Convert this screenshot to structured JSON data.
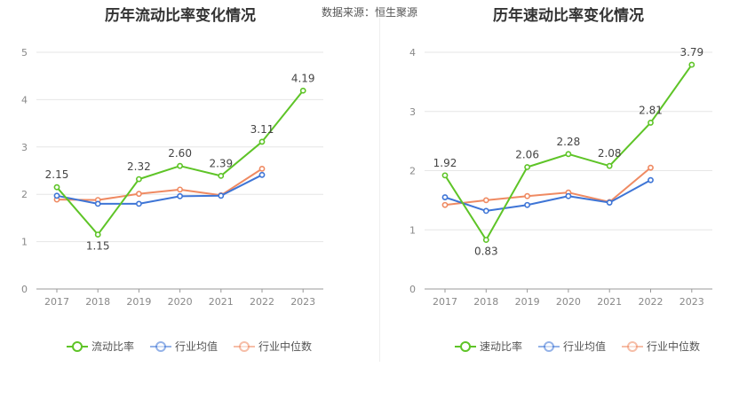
{
  "source_label": "数据来源：",
  "source_name": "恒生聚源",
  "chart_data": [
    {
      "type": "line",
      "title": "历年流动比率变化情况",
      "categories": [
        "2017",
        "2018",
        "2019",
        "2020",
        "2021",
        "2022",
        "2023"
      ],
      "ylim": [
        0,
        5
      ],
      "yticks": [
        "0",
        "1",
        "2",
        "3",
        "4",
        "5"
      ],
      "grid": true,
      "legend_position": "bottom",
      "series": [
        {
          "name": "流动比率",
          "color": "#5ec427",
          "values": [
            2.15,
            1.15,
            2.32,
            2.6,
            2.39,
            3.11,
            4.19
          ],
          "labels": [
            "2.15",
            "1.15",
            "2.32",
            "2.60",
            "2.39",
            "3.11",
            "4.19"
          ]
        },
        {
          "name": "行业均值",
          "color": "#3e75d6",
          "values": [
            1.97,
            1.8,
            1.8,
            1.96,
            1.97,
            2.41,
            null
          ]
        },
        {
          "name": "行业中位数",
          "color": "#ef8a62",
          "values": [
            1.89,
            1.88,
            2.01,
            2.1,
            1.98,
            2.54,
            null
          ]
        }
      ]
    },
    {
      "type": "line",
      "title": "历年速动比率变化情况",
      "categories": [
        "2017",
        "2018",
        "2019",
        "2020",
        "2021",
        "2022",
        "2023"
      ],
      "ylim": [
        0,
        4
      ],
      "yticks": [
        "0",
        "1",
        "2",
        "3",
        "4"
      ],
      "grid": true,
      "legend_position": "bottom",
      "series": [
        {
          "name": "速动比率",
          "color": "#5ec427",
          "values": [
            1.92,
            0.83,
            2.06,
            2.28,
            2.08,
            2.81,
            3.79
          ],
          "labels": [
            "1.92",
            "0.83",
            "2.06",
            "2.28",
            "2.08",
            "2.81",
            "3.79"
          ]
        },
        {
          "name": "行业均值",
          "color": "#3e75d6",
          "values": [
            1.55,
            1.32,
            1.42,
            1.57,
            1.46,
            1.84,
            null
          ]
        },
        {
          "name": "行业中位数",
          "color": "#ef8a62",
          "values": [
            1.42,
            1.5,
            1.57,
            1.63,
            1.47,
            2.05,
            null
          ]
        }
      ]
    }
  ]
}
